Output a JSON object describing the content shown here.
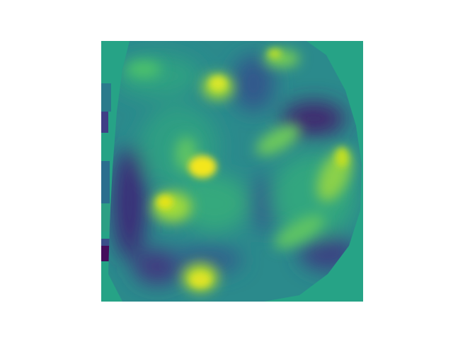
{
  "image": {
    "kind": "heatmap",
    "colormap": "viridis",
    "axes_visible": false,
    "colors": {
      "figure_background": "#ffffff",
      "outside_region": "#26a386",
      "dark_low": "#3f2a6f",
      "mid_low": "#2b7b8c",
      "mid": "#2ea082",
      "mid_high": "#6dc95c",
      "high": "#d9e72a",
      "peak": "#f4e61e"
    }
  }
}
